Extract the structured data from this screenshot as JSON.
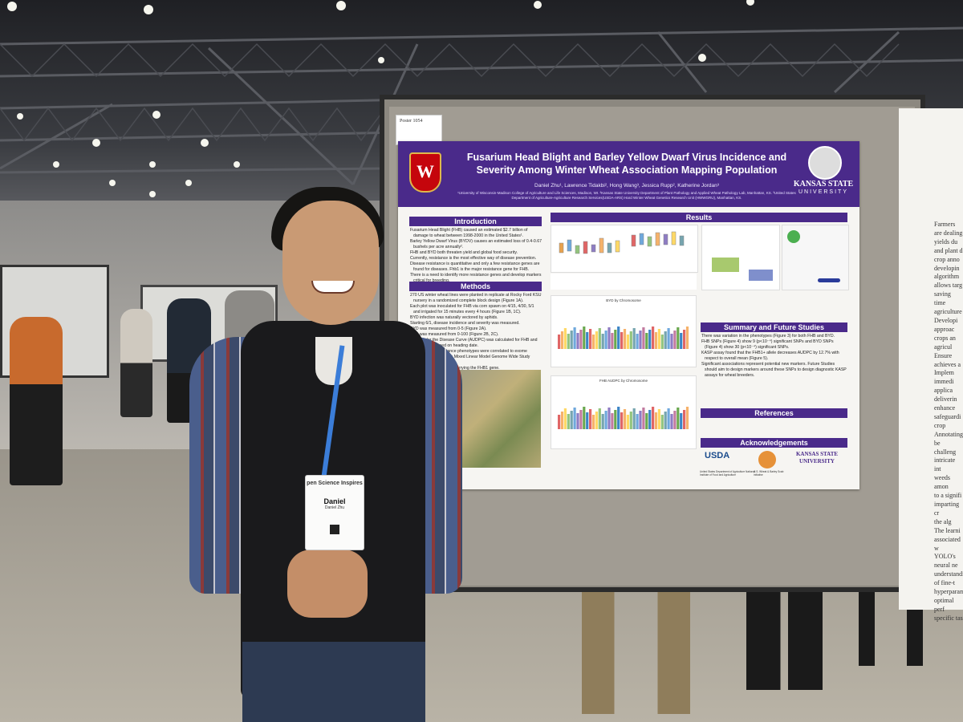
{
  "poster_number": "Poster 1054",
  "poster": {
    "title_line1": "Fusarium Head Blight and Barley Yellow Dwarf Virus Incidence and",
    "title_line2": "Severity Among Winter Wheat Association Mapping Population",
    "authors": "Daniel Zhu¹, Lawrence Tidakbi², Hong Wang³, Jessica Rupp², Katherine Jordan³",
    "affiliations": "¹University of Wisconsin-Madison College of Agriculture and Life Sciences, Madison, WI. ²Kansas State University Department of Plant Pathology and Applied Wheat Pathology Lab, Manhattan, KS. ³United States Department of Agriculture-Agriculture Research Services(USDA-ARS) Hard Winter Wheat Genetics Research Unit (HWWGRU), Manhattan, KS.",
    "logo_right_line1": "KANSAS STATE",
    "logo_right_line2": "UNIVERSITY",
    "sections": {
      "introduction": "Introduction",
      "methods": "Methods",
      "results": "Results",
      "summary": "Summary and Future Studies",
      "references": "References",
      "acknowledgements": "Acknowledgements"
    },
    "intro_bullets": [
      "Fusarium Head Blight (FHB) caused an estimated $2.7 billion of damage to wheat between 1998-2000 in the United States¹.",
      "Barley Yellow Dwarf Virus (BYDV) causes an estimated loss of 0.4-0.67 bushels per acre annually².",
      "FHB and BYD both threaten yield and global food security.",
      "Currently, resistance is the most effective way of disease prevention.",
      "Disease resistance is quantitative and only a few resistance genes are found for diseases. Fhb1 is the major resistance gene for FHB.",
      "There is a need to identify more resistance genes and develop markers critical for breeding."
    ],
    "methods_bullets": [
      "270 US winter wheat lines were planted in replicate at Rocky Ford KSU nursery in a randomized complete block design (Figure 1A).",
      "Each plot was inoculated for FHB via corn spawn on 4/15, 4/30, 5/1 and irrigated for 15 minutes every 4 hours (Figure 1B, 1C).",
      "BYD infection was naturally vectored by aphids.",
      "Starting 6/1, disease incidence and severity was measured.",
      "BYD was measured from 0-5 (Figure 2A).",
      "FHB was measured from 0-100 (Figure 2B, 2C).",
      "Area Under the Disease Curve (AUDPC) was calculated for FHB and normalized based on heading date.",
      "BYD and FHB resistance phenotypes were correlated to exome genomic data using a Mixed Linear Model Genome Wide Study (GWAS).",
      "was run to identify lines carrying the FHB1 gene."
    ],
    "summary_bullets": [
      "There was variation in the phenotypes (Figure 3) for both FHB and BYD.",
      "FHB SNPs (Figure 4) show 9 (p<10⁻⁴) significant SNPs and BYD SNPs (Figure 4) show 30 (p<10⁻⁴) significant SNPs.",
      "KASP assay found that the FHB1+ allele decreases AUDPC by 12.7% with respect to overall mean (Figure 5).",
      "Significant associations represent potential new markers. Future Studies should aim to design markers around these SNPs to design diagnostic KASP assays for wheat breeders."
    ],
    "figure_labels": {
      "byd_chrom": "BYD by Chromosome",
      "fhb_chrom": "FHB AUDPC by Chromosome"
    },
    "ack_logos": [
      "USDA",
      "KANSAS STATE UNIVERSITY"
    ],
    "ack_caption_left": "United States Department of Agriculture National Institute of Food and Agriculture",
    "ack_caption_mid": "U.S. Wheat & Barley Scab Initiative"
  },
  "badge": {
    "event": "pen Science Inspires",
    "name": "Daniel",
    "full_name": "Daniel Zhu"
  },
  "right_sign_fragments": [
    "Farmers",
    "are dealing",
    "yields du",
    "and plant d",
    "crop anno",
    "developin",
    "algorithm",
    "allows targ",
    "saving time",
    "agriculture",
    "Developi",
    "approac",
    "crops an",
    "agricul",
    "Ensure",
    "achieves a",
    "Implem",
    "immedi",
    "applica",
    "deliverin",
    "enhance",
    "safeguardi",
    "crop",
    "Annotating",
    "be challeng",
    "intricate int",
    "weeds amon",
    "to a signifi",
    "imparting cr",
    "the alg",
    "The learni",
    "associated w",
    "YOLO's",
    "neural ne",
    "understandi",
    "of fine-t",
    "hyperparamet",
    "optimal perf",
    "specific tas"
  ]
}
